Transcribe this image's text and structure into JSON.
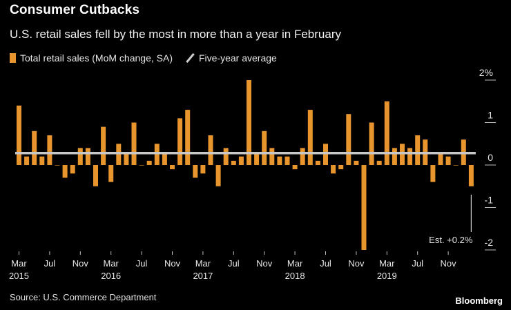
{
  "header": {
    "title": "Consumer Cutbacks",
    "subtitle": "U.S. retail sales fell by the most in more than a year in February"
  },
  "legend": {
    "series_label": "Total retail sales (MoM change, SA)",
    "average_label": "Five-year average"
  },
  "footer": {
    "source": "Source: U.S. Commerce Department",
    "brand": "Bloomberg"
  },
  "colors": {
    "bar": "#e8952e",
    "average_line": "#c8c8c8",
    "background": "#000000"
  },
  "chart_data": {
    "type": "bar",
    "title": "Consumer Cutbacks",
    "subtitle": "U.S. retail sales fell by the most in more than a year in February",
    "ylim": [
      -2,
      2
    ],
    "y_ticks": [
      "2%",
      "1",
      "0",
      "-1",
      "-2"
    ],
    "y_tick_values": [
      2,
      1,
      0,
      -1,
      -2
    ],
    "y_axis_side": "right",
    "x_tick_labels": [
      {
        "index": 0,
        "label": "Mar",
        "year": "2015"
      },
      {
        "index": 4,
        "label": "Jul",
        "year": ""
      },
      {
        "index": 8,
        "label": "Nov",
        "year": ""
      },
      {
        "index": 12,
        "label": "Mar",
        "year": "2016"
      },
      {
        "index": 16,
        "label": "Jul",
        "year": ""
      },
      {
        "index": 20,
        "label": "Nov",
        "year": ""
      },
      {
        "index": 24,
        "label": "Mar",
        "year": "2017"
      },
      {
        "index": 28,
        "label": "Jul",
        "year": ""
      },
      {
        "index": 32,
        "label": "Nov",
        "year": ""
      },
      {
        "index": 36,
        "label": "Mar",
        "year": "2018"
      },
      {
        "index": 40,
        "label": "Jul",
        "year": ""
      },
      {
        "index": 44,
        "label": "Nov",
        "year": ""
      },
      {
        "index": 48,
        "label": "Mar",
        "year": "2019"
      },
      {
        "index": 52,
        "label": "Jul",
        "year": ""
      },
      {
        "index": 56,
        "label": "Nov",
        "year": ""
      }
    ],
    "series": [
      {
        "name": "Total retail sales (MoM change, SA)",
        "start": "2015-03",
        "end": "2020-02",
        "values": [
          1.4,
          0.2,
          0.8,
          0.2,
          0.7,
          0.0,
          -0.3,
          -0.2,
          0.4,
          0.4,
          -0.5,
          0.9,
          -0.4,
          0.5,
          0.3,
          1.0,
          0.0,
          0.1,
          0.5,
          0.3,
          -0.1,
          1.1,
          1.3,
          -0.3,
          -0.2,
          0.7,
          -0.5,
          0.4,
          0.1,
          0.2,
          2.0,
          0.3,
          0.8,
          0.4,
          0.2,
          0.2,
          -0.1,
          0.4,
          1.3,
          0.1,
          0.5,
          -0.2,
          -0.1,
          1.2,
          0.1,
          -2.0,
          1.0,
          0.1,
          1.5,
          0.4,
          0.5,
          0.4,
          0.7,
          0.6,
          -0.4,
          0.3,
          0.2,
          0.0,
          0.6,
          -0.5
        ]
      },
      {
        "name": "Five-year average",
        "type": "line",
        "value": 0.28
      }
    ],
    "annotation": {
      "text": "Est. +0.2%",
      "value": 0.2,
      "target_month": "2020-02"
    },
    "grid": false,
    "legend_position": "top-left"
  }
}
